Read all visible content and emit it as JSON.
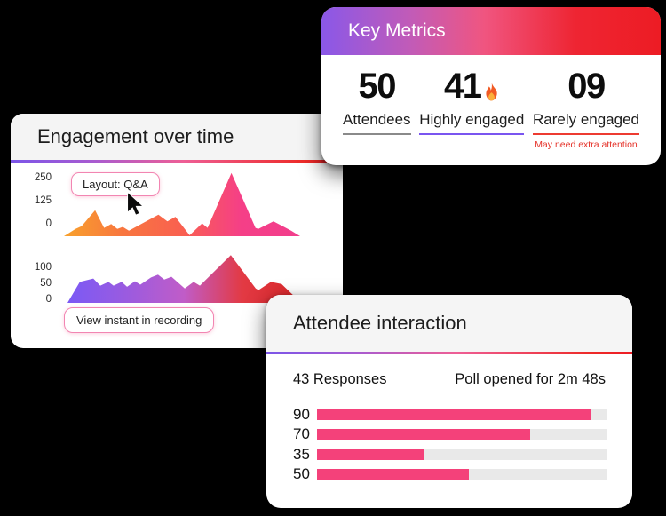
{
  "window": {
    "background": "#000000"
  },
  "engagement_card": {
    "title": "Engagement over time",
    "tooltip_label": "Layout: Q&A",
    "view_recording_button": "View instant in recording"
  },
  "key_metrics_card": {
    "title": "Key Metrics",
    "metrics": [
      {
        "value": "50",
        "label": "Attendees",
        "underline_color": "#8a8a8a"
      },
      {
        "value": "41",
        "label": "Highly engaged",
        "underline_color": "#7A55F0",
        "icon": "fire-icon"
      },
      {
        "value": "09",
        "label": "Rarely engaged",
        "underline_color": "#ED3B31",
        "note": "May need extra attention"
      }
    ]
  },
  "attendee_card": {
    "title": "Attendee interaction",
    "responses": "43 Responses",
    "poll_status": "Poll opened for 2m 48s"
  },
  "colors": {
    "brand_gradient": [
      "#8A58E8",
      "#F05580",
      "#ED1C24"
    ],
    "divider_gradient": [
      "#7B55E8",
      "#EE5E95",
      "#ED1C24"
    ],
    "bar_pink": "#F4417A",
    "bar_track": "#E9E9E9",
    "chip_border_pink": "#F285B2",
    "alert_red": "#E5332A"
  },
  "chart_data": [
    {
      "type": "area",
      "title": "Engagement over time — upper series",
      "yticks": [
        "250",
        "125",
        "0"
      ],
      "ylim": [
        0,
        260
      ],
      "grid": false,
      "gradient": [
        "#F8A12C",
        "#F8763F",
        "#F96050",
        "#F53F87",
        "#F23E8C"
      ],
      "points": [
        [
          0,
          0
        ],
        [
          4.9,
          29
        ],
        [
          7.5,
          40
        ],
        [
          13.2,
          103
        ],
        [
          17,
          33
        ],
        [
          20,
          48
        ],
        [
          22.6,
          29
        ],
        [
          24.9,
          37
        ],
        [
          27.5,
          22
        ],
        [
          40,
          85
        ],
        [
          43.8,
          59
        ],
        [
          47.2,
          77
        ],
        [
          53.2,
          4
        ],
        [
          58.5,
          51
        ],
        [
          60.8,
          33
        ],
        [
          70.9,
          250
        ],
        [
          81.1,
          33
        ],
        [
          82.3,
          29
        ],
        [
          88.7,
          59
        ],
        [
          96.2,
          22
        ],
        [
          100,
          0
        ]
      ]
    },
    {
      "type": "area",
      "title": "Engagement over time — lower series",
      "yticks": [
        "100",
        "50",
        "0"
      ],
      "ylim": [
        0,
        150
      ],
      "grid": false,
      "gradient": [
        "#7B5AF5",
        "#9A5BE0",
        "#C05CC8",
        "#E23A44",
        "#DC2629"
      ],
      "points": [
        [
          0,
          0
        ],
        [
          5.3,
          61
        ],
        [
          11.1,
          71
        ],
        [
          14.1,
          50
        ],
        [
          17.6,
          61
        ],
        [
          19.8,
          50
        ],
        [
          23.3,
          61
        ],
        [
          25.6,
          47
        ],
        [
          29,
          63
        ],
        [
          31.3,
          53
        ],
        [
          35.9,
          74
        ],
        [
          38.9,
          82
        ],
        [
          41.6,
          68
        ],
        [
          44.7,
          76
        ],
        [
          50.4,
          42
        ],
        [
          54.2,
          61
        ],
        [
          56.9,
          50
        ],
        [
          70.2,
          139
        ],
        [
          80.9,
          42
        ],
        [
          82.1,
          37
        ],
        [
          87.4,
          61
        ],
        [
          92,
          55
        ],
        [
          100,
          3
        ]
      ]
    },
    {
      "type": "bar",
      "title": "Attendee interaction poll results",
      "orientation": "horizontal",
      "labels": [
        "90",
        "70",
        "35",
        "50"
      ],
      "values": [
        90,
        70,
        35,
        50
      ],
      "xlim": [
        0,
        95
      ],
      "bar_color": "#F4417A",
      "track_color": "#E9E9E9"
    }
  ]
}
